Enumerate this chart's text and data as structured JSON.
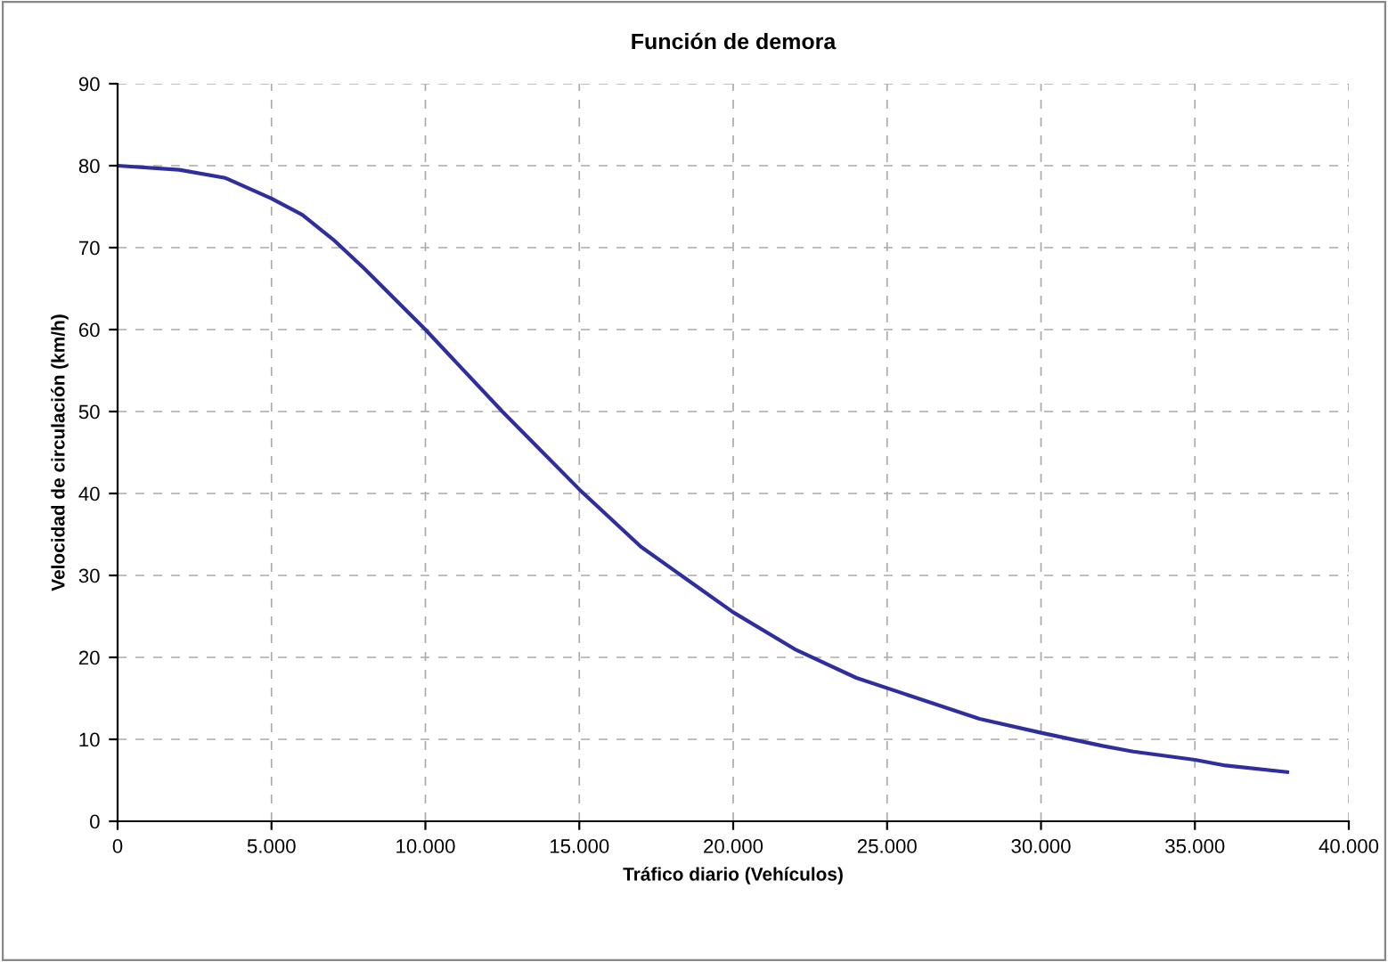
{
  "chart_data": {
    "type": "line",
    "title": "Función de demora",
    "xlabel": "Tráfico diario (Vehículos)",
    "ylabel": "Velocidad de circulación (km/h)",
    "series": [
      {
        "color": "#2e2e9e",
        "x": [
          0,
          2000,
          3500,
          5000,
          6000,
          7000,
          8000,
          10000,
          12500,
          15000,
          17000,
          20000,
          22000,
          24000,
          26000,
          28000,
          30000,
          32000,
          33000,
          35000,
          36000,
          38000
        ],
        "values": [
          80,
          79.5,
          78.5,
          76,
          74,
          71,
          67.5,
          60,
          50,
          40.5,
          33.5,
          25.5,
          21,
          17.5,
          15,
          12.5,
          10.8,
          9.2,
          8.5,
          7.5,
          6.8,
          6
        ]
      }
    ],
    "xlim": [
      0,
      40000
    ],
    "ylim": [
      0,
      90
    ],
    "xticks": [
      0,
      {
        "value": 5000,
        "label": "5.000"
      },
      {
        "value": 10000,
        "label": "10.000"
      },
      {
        "value": 15000,
        "label": "15.000"
      },
      {
        "value": 20000,
        "label": "20.000"
      },
      {
        "value": 25000,
        "label": "25.000"
      },
      {
        "value": 30000,
        "label": "30.000"
      },
      {
        "value": 35000,
        "label": "35.000"
      },
      {
        "value": 40000,
        "label": "40.000"
      }
    ],
    "yticks": [
      0,
      10,
      20,
      30,
      40,
      50,
      60,
      70,
      80,
      90
    ],
    "grid": true,
    "marker": "none",
    "line_style": "solid"
  }
}
